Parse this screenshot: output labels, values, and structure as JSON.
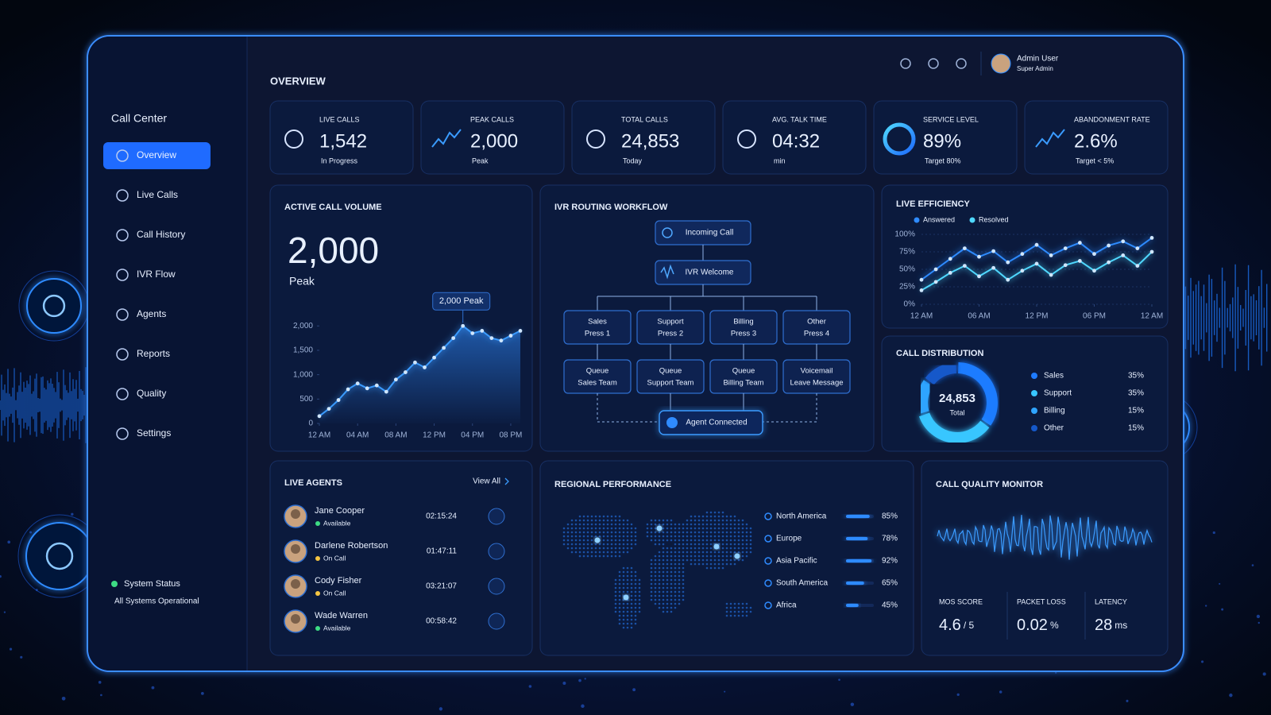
{
  "sidebar": {
    "brand": "Call Center",
    "nav": [
      "Overview",
      "Live Calls",
      "Call History",
      "IVR Flow",
      "Agents",
      "Reports",
      "Quality",
      "Settings"
    ],
    "status_title": "System Status",
    "status_text": "All Systems Operational"
  },
  "header": {
    "title": "OVERVIEW",
    "user_name": "Admin User",
    "user_role": "Super Admin"
  },
  "kpis": [
    {
      "label": "LIVE CALLS",
      "value": "1,542",
      "sub": "In Progress"
    },
    {
      "label": "PEAK CALLS",
      "value": "2,000",
      "sub": "Peak"
    },
    {
      "label": "TOTAL CALLS",
      "value": "24,853",
      "sub": "Today"
    },
    {
      "label": "AVG. TALK TIME",
      "value": "04:32",
      "sub": "min"
    },
    {
      "label": "SERVICE LEVEL",
      "value": "89%",
      "sub": "Target 80%"
    },
    {
      "label": "ABANDONMENT RATE",
      "value": "2.6%",
      "sub": "Target < 5%"
    }
  ],
  "ivr": {
    "title": "IVR ROUTING WORKFLOW",
    "start": "Incoming Call",
    "welcome": "IVR Welcome",
    "options": [
      {
        "title": "Sales",
        "sub": "Press 1"
      },
      {
        "title": "Support",
        "sub": "Press 2"
      },
      {
        "title": "Billing",
        "sub": "Press 3"
      },
      {
        "title": "Other",
        "sub": "Press 4"
      }
    ],
    "queues": [
      {
        "title": "Queue",
        "sub": "Sales Team"
      },
      {
        "title": "Queue",
        "sub": "Support Team"
      },
      {
        "title": "Queue",
        "sub": "Billing Team"
      },
      {
        "title": "Voicemail",
        "sub": "Leave Message"
      }
    ],
    "end": "Agent Connected"
  },
  "agents": {
    "title": "LIVE AGENTS",
    "link": "View All",
    "rows": [
      {
        "name": "Jane Cooper",
        "status": "Available",
        "status_color": "#3ddc84",
        "time": "02:15:24"
      },
      {
        "name": "Darlene Robertson",
        "status": "On Call",
        "status_color": "#f5c542",
        "time": "01:47:11"
      },
      {
        "name": "Cody Fisher",
        "status": "On Call",
        "status_color": "#f5c542",
        "time": "03:21:07"
      },
      {
        "name": "Wade Warren",
        "status": "Available",
        "status_color": "#3ddc84",
        "time": "00:58:42"
      }
    ]
  },
  "quality": {
    "title": "CALL QUALITY MONITOR",
    "metrics": [
      {
        "label": "MOS SCORE",
        "value": "4.6",
        "unit": "/ 5"
      },
      {
        "label": "PACKET LOSS",
        "value": "0.02",
        "unit": "%"
      },
      {
        "label": "LATENCY",
        "value": "28",
        "unit": "ms"
      }
    ]
  },
  "chart_data": [
    {
      "type": "line",
      "title": "ACTIVE CALL VOLUME",
      "value_text": "2,000",
      "value_sub": "Peak",
      "annotation": "2,000 Peak",
      "x": [
        0,
        1,
        2,
        3,
        4,
        5,
        6,
        7,
        8,
        9,
        10,
        11,
        12,
        13,
        14,
        15,
        16,
        17,
        18,
        19,
        20,
        21
      ],
      "values": [
        150,
        300,
        480,
        700,
        820,
        720,
        780,
        650,
        900,
        1050,
        1250,
        1150,
        1350,
        1550,
        1750,
        2000,
        1850,
        1900,
        1750,
        1700,
        1800,
        1900
      ],
      "color": "#3a9bff",
      "area": true,
      "grid": false,
      "xlim": [
        0,
        21
      ],
      "xticks": [
        {
          "value": 0,
          "label": "12 AM"
        },
        {
          "value": 4,
          "label": "04 AM"
        },
        {
          "value": 8,
          "label": "08 AM"
        },
        {
          "value": 12,
          "label": "12 PM"
        },
        {
          "value": 16,
          "label": "04 PM"
        },
        {
          "value": 20,
          "label": "08 PM"
        }
      ],
      "ylim": [
        0,
        2200
      ],
      "yticks": [
        0,
        500,
        {
          "value": 1000,
          "label": "1,000"
        },
        {
          "value": 1500,
          "label": "1,500"
        },
        {
          "value": 2000,
          "label": "2,000"
        }
      ]
    },
    {
      "type": "line",
      "title": "LIVE EFFICIENCY",
      "x": [
        0,
        1.5,
        3,
        4.5,
        6,
        7.5,
        9,
        10.5,
        12,
        13.5,
        15,
        16.5,
        18,
        19.5,
        21,
        22.5,
        24
      ],
      "series": [
        {
          "name": "Answered",
          "color": "#2f8bff",
          "values": [
            35,
            50,
            65,
            80,
            68,
            76,
            60,
            72,
            85,
            70,
            80,
            88,
            72,
            84,
            90,
            80,
            95
          ]
        },
        {
          "name": "Resolved",
          "color": "#4fd8ff",
          "values": [
            20,
            32,
            45,
            55,
            40,
            52,
            35,
            48,
            58,
            42,
            56,
            62,
            48,
            60,
            70,
            55,
            75
          ]
        }
      ],
      "grid": true,
      "xlim": [
        0,
        24
      ],
      "xticks": [
        {
          "value": 0,
          "label": "12 AM"
        },
        {
          "value": 6,
          "label": "06 AM"
        },
        {
          "value": 12,
          "label": "12 PM"
        },
        {
          "value": 18,
          "label": "06 PM"
        },
        {
          "value": 24,
          "label": "12 AM"
        }
      ],
      "ylim": [
        0,
        100
      ],
      "yticks": [
        {
          "value": 0,
          "label": "0%"
        },
        {
          "value": 25,
          "label": "25%"
        },
        {
          "value": 50,
          "label": "50%"
        },
        {
          "value": 75,
          "label": "75%"
        },
        {
          "value": 100,
          "label": "100%"
        }
      ]
    },
    {
      "type": "donut",
      "title": "CALL DISTRIBUTION",
      "center_value": "24,853",
      "center_label": "Total",
      "categories": [
        "Sales",
        "Support",
        "Billing",
        "Other"
      ],
      "values": [
        35,
        35,
        15,
        15
      ],
      "value_labels": [
        "35%",
        "35%",
        "15%",
        "15%"
      ],
      "colors": [
        "#1e7bff",
        "#38c6ff",
        "#2fa4ff",
        "#1558c9"
      ]
    },
    {
      "type": "hbar",
      "title": "REGIONAL PERFORMANCE",
      "categories": [
        "North America",
        "Europe",
        "Asia Pacific",
        "South America",
        "Africa"
      ],
      "values": [
        85,
        78,
        92,
        65,
        45
      ],
      "value_labels": [
        "85%",
        "78%",
        "92%",
        "65%",
        "45%"
      ],
      "xlim": [
        0,
        100
      ],
      "color": "#2f8bff"
    }
  ]
}
